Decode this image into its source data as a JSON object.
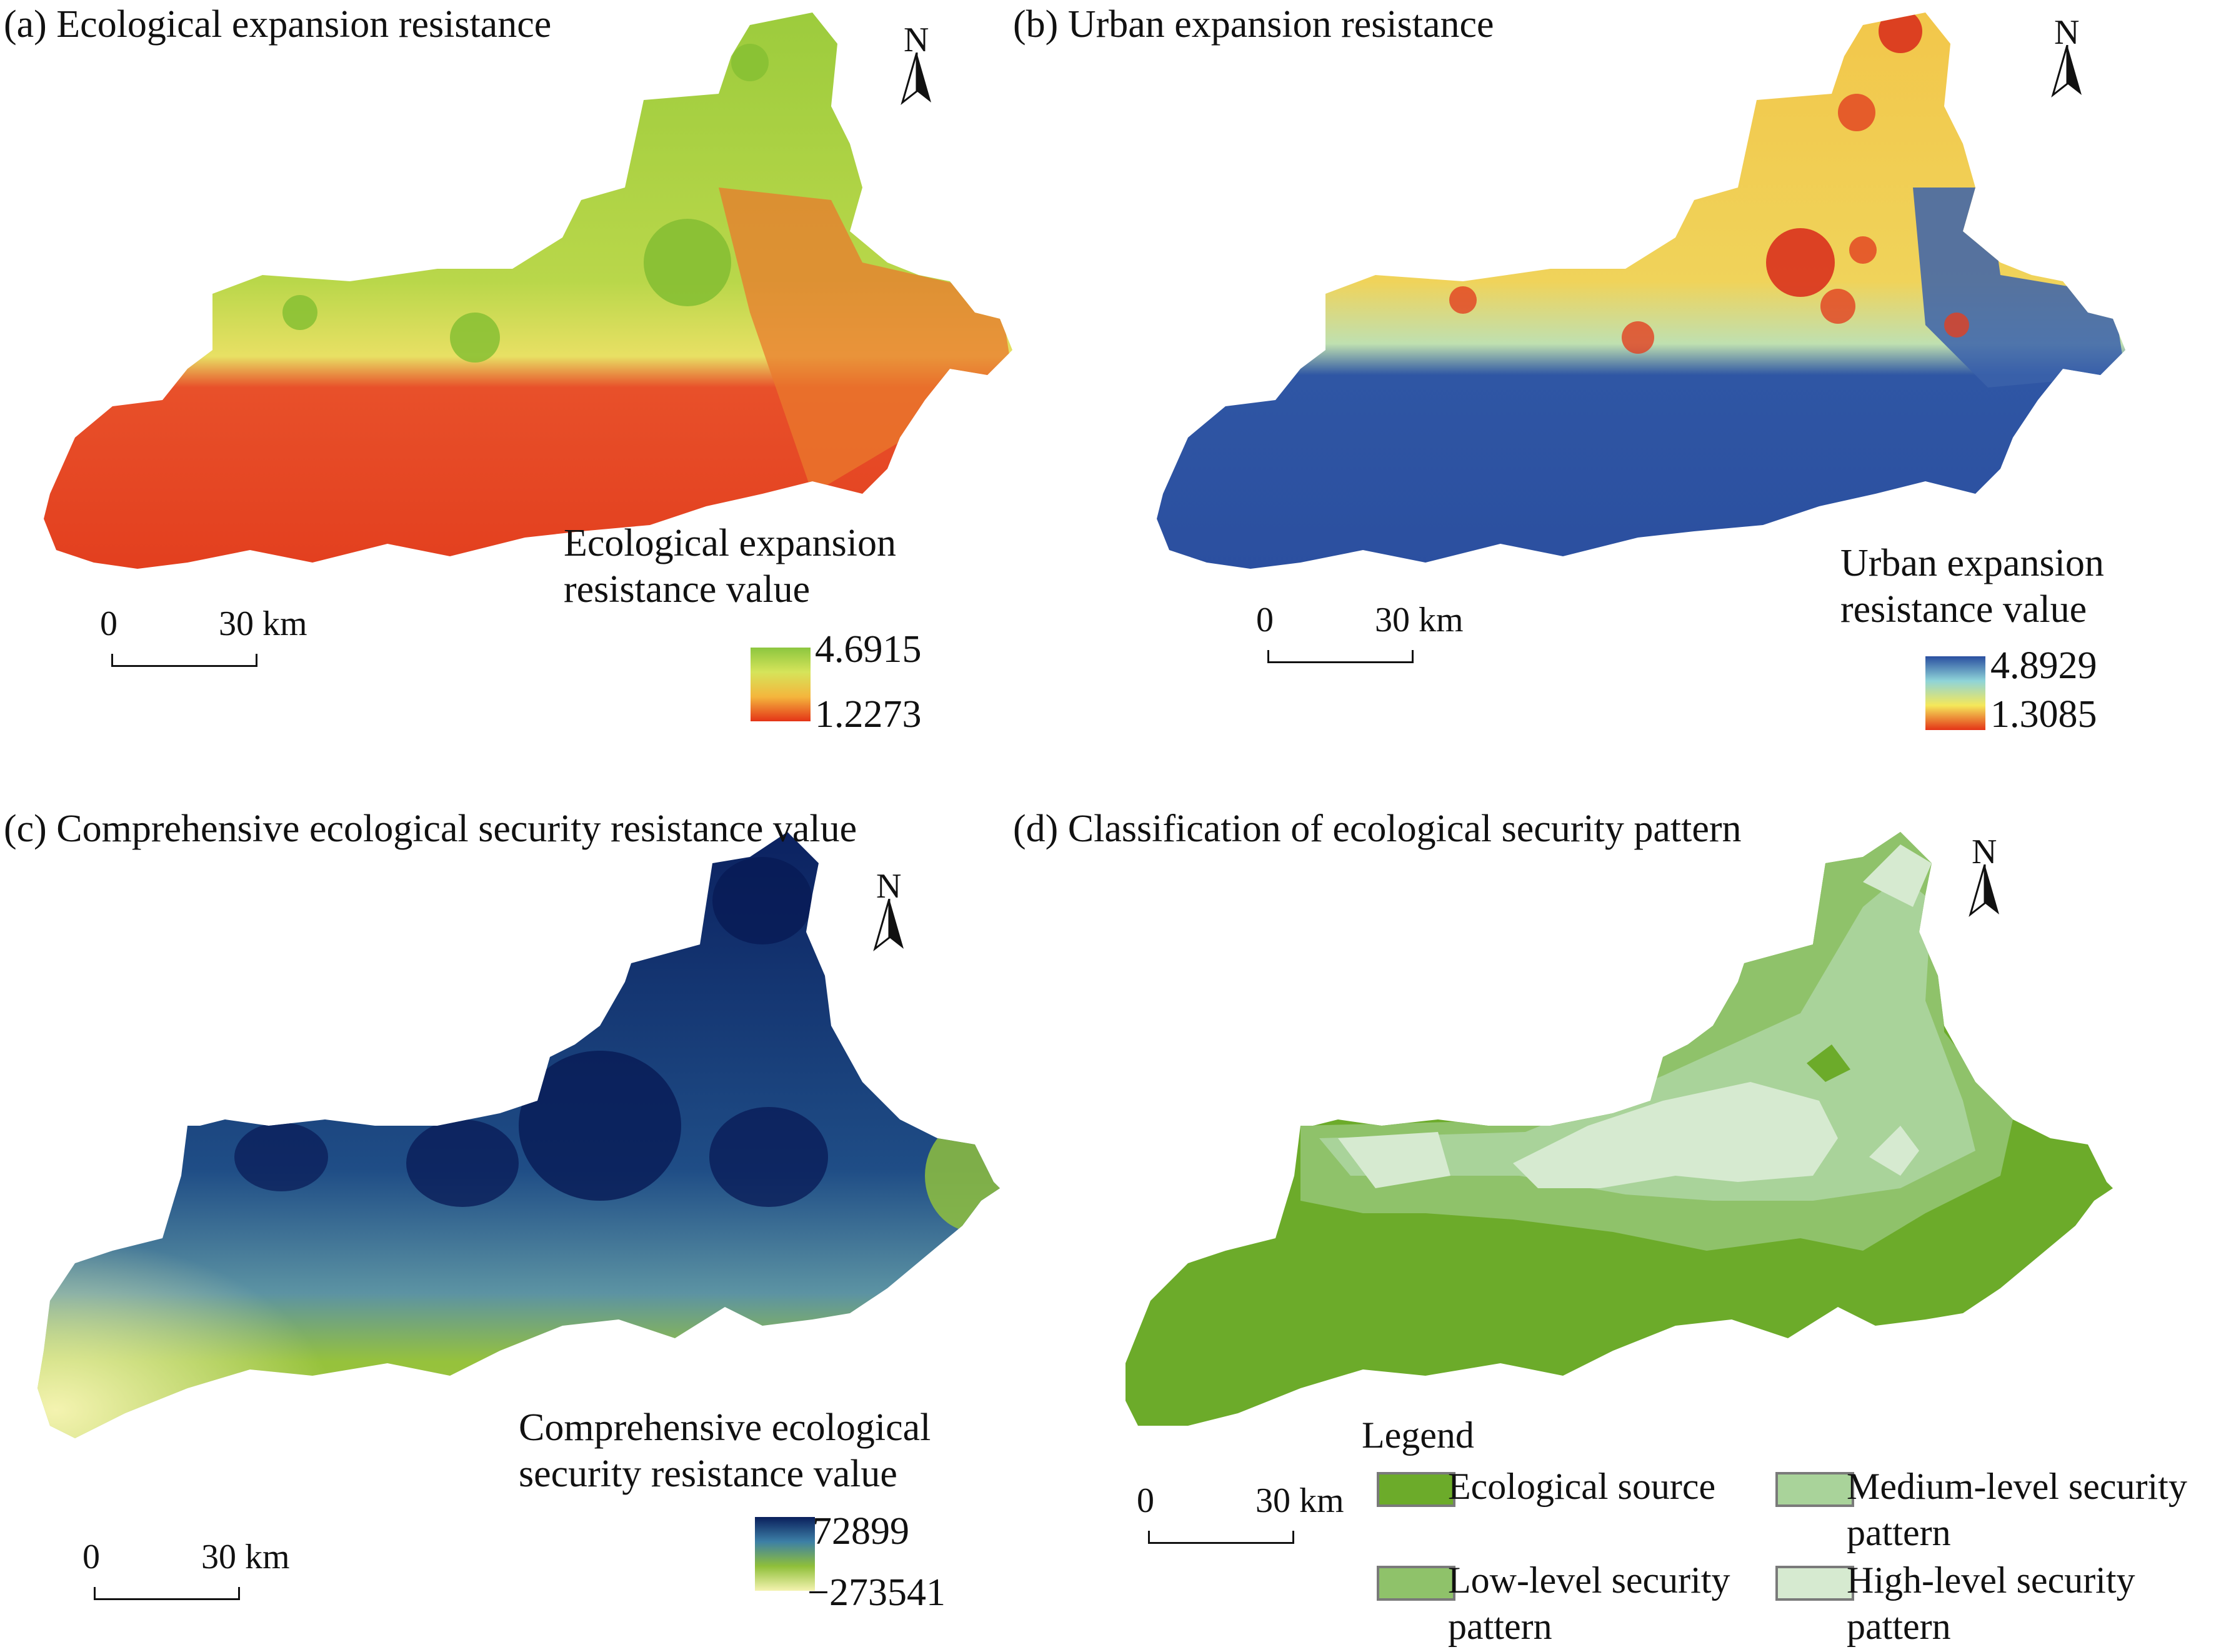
{
  "panels": {
    "a": {
      "title": "(a) Ecological expansion resistance",
      "legend_title_1": "Ecological expansion",
      "legend_title_2": "resistance value",
      "max_label": "4.6915",
      "min_label": "1.2273",
      "scale_zero": "0",
      "scale_max": "30 km",
      "north": "N",
      "ramp_colors": [
        "#8cc63f",
        "#d6e45a",
        "#f4b63d",
        "#e43417"
      ]
    },
    "b": {
      "title": "(b) Urban expansion resistance",
      "legend_title_1": "Urban expansion",
      "legend_title_2": "resistance value",
      "max_label": "4.8929",
      "min_label": "1.3085",
      "scale_zero": "0",
      "scale_max": "30 km",
      "north": "N",
      "ramp_colors": [
        "#2a4fa0",
        "#8fd4d8",
        "#f5e85a",
        "#e43417"
      ]
    },
    "c": {
      "title": "(c) Comprehensive ecological security resistance value",
      "legend_title_1": "Comprehensive ecological",
      "legend_title_2": "security resistance value",
      "max_label": "72899",
      "min_label": "−273541",
      "scale_zero": "0",
      "scale_max": "30 km",
      "north": "N",
      "ramp_colors": [
        "#0a1f5c",
        "#3c7fa6",
        "#8fbf3a",
        "#f4f3b0"
      ]
    },
    "d": {
      "title": "(d) Classification of ecological security pattern",
      "legend_heading": "Legend",
      "scale_zero": "0",
      "scale_max": "30 km",
      "north": "N",
      "categories": [
        {
          "label_1": "Ecological source",
          "label_2": "",
          "color": "#6cab2a"
        },
        {
          "label_1": "Medium-level security",
          "label_2": "pattern",
          "color": "#a9d39a"
        },
        {
          "label_1": "Low-level security",
          "label_2": "pattern",
          "color": "#8fc26a"
        },
        {
          "label_1": "High-level security",
          "label_2": "pattern",
          "color": "#d6ead0"
        }
      ]
    }
  }
}
